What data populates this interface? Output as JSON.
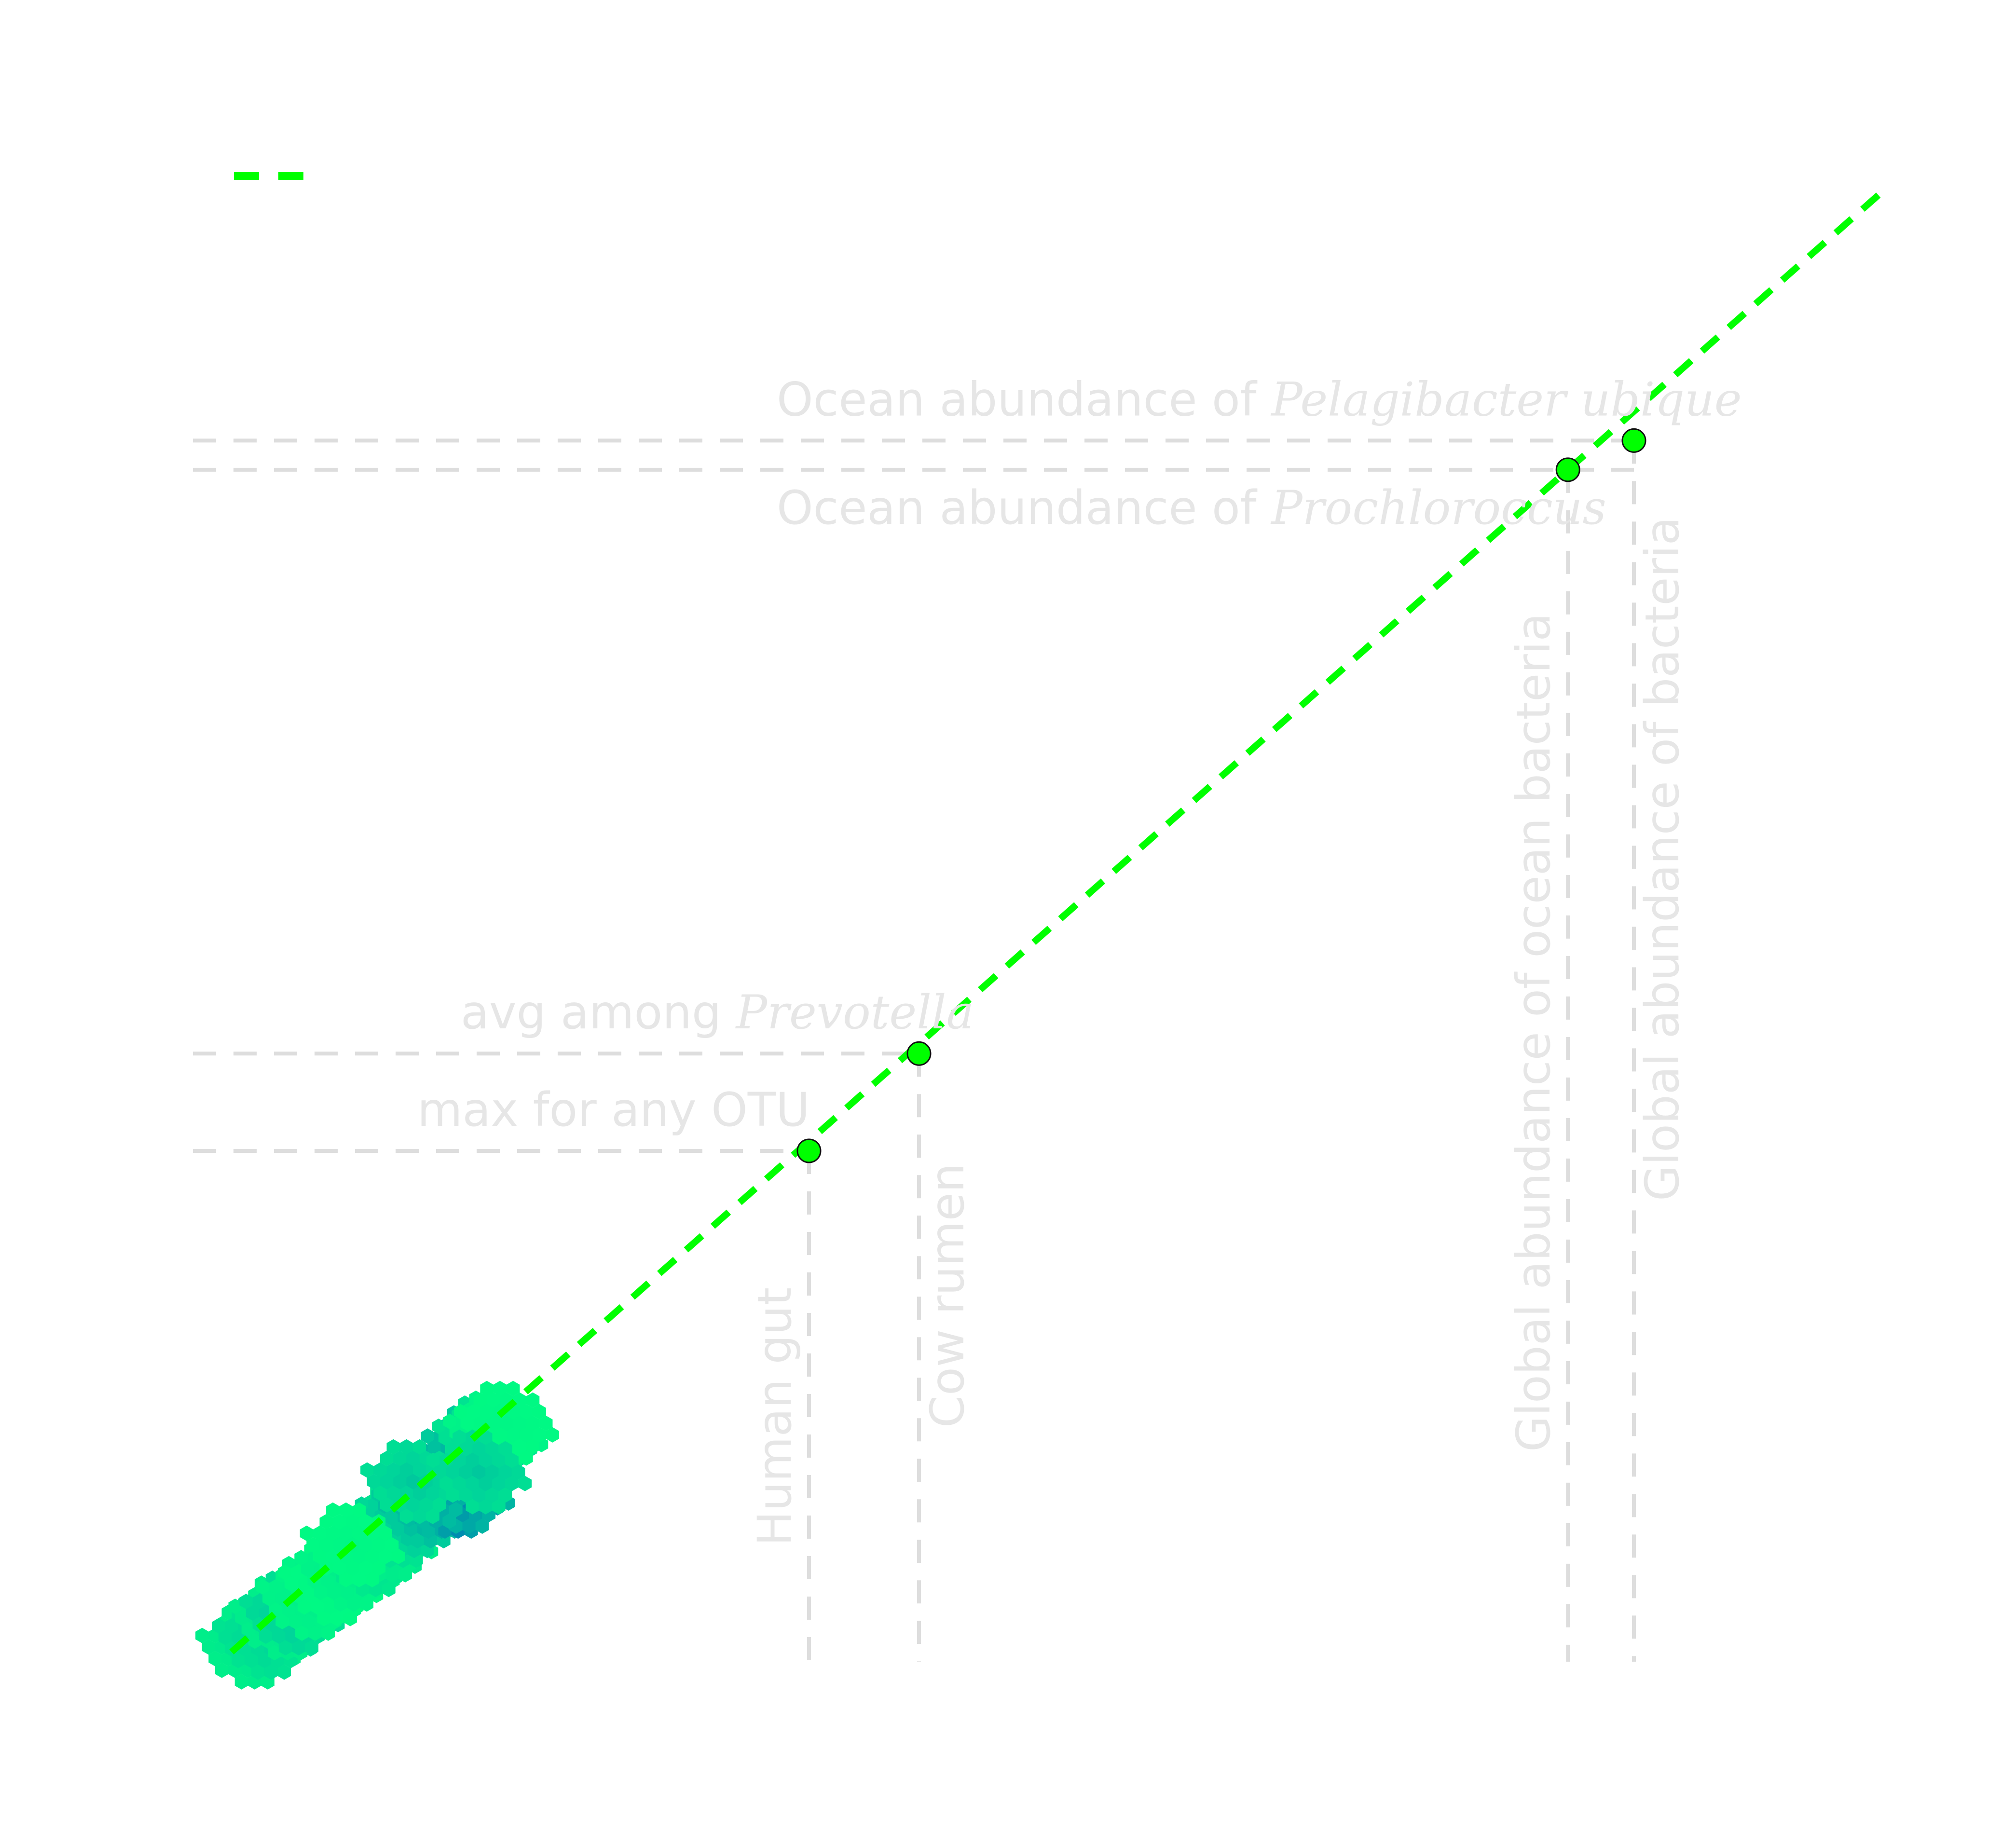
{
  "chart_data": {
    "type": "scatter",
    "title": "",
    "xlabel": "",
    "ylabel": "",
    "grid": false,
    "legend": {
      "placement": "top-left",
      "entries": [
        {
          "name": "",
          "color": "#00ff00",
          "style": "dashed-line"
        }
      ]
    },
    "xlim": [
      0,
      30
    ],
    "ylim": [
      0,
      29
    ],
    "fit_line": {
      "slope": 1.0,
      "intercept": 0.2,
      "x_range": [
        0,
        30
      ],
      "color": "#00ff00"
    },
    "hexbin_density": {
      "colormap": [
        "#00ff80",
        "#00d49a",
        "#0099aa",
        "#0055cc",
        "#0022ee"
      ],
      "cells": [
        {
          "x": 0.3,
          "y": 0.3,
          "density": 0.15
        },
        {
          "x": 0.6,
          "y": 0.5,
          "density": 0.25
        },
        {
          "x": 0.9,
          "y": 0.9,
          "density": 0.15
        },
        {
          "x": 1.1,
          "y": 1.0,
          "density": 0.3
        },
        {
          "x": 1.4,
          "y": 1.3,
          "density": 0.1
        },
        {
          "x": 1.8,
          "y": 1.6,
          "density": 0.05
        },
        {
          "x": 2.1,
          "y": 1.9,
          "density": 0.1
        },
        {
          "x": 2.5,
          "y": 2.2,
          "density": 0.2
        },
        {
          "x": 2.8,
          "y": 2.5,
          "density": 0.15
        },
        {
          "x": 3.0,
          "y": 2.8,
          "density": 0.25
        },
        {
          "x": 3.2,
          "y": 3.0,
          "density": 0.35
        },
        {
          "x": 3.5,
          "y": 3.2,
          "density": 0.45
        },
        {
          "x": 3.7,
          "y": 3.4,
          "density": 0.55
        },
        {
          "x": 3.9,
          "y": 3.6,
          "density": 0.7
        },
        {
          "x": 4.1,
          "y": 3.8,
          "density": 0.9
        },
        {
          "x": 4.0,
          "y": 3.4,
          "density": 0.75
        },
        {
          "x": 4.2,
          "y": 3.5,
          "density": 0.6
        },
        {
          "x": 4.3,
          "y": 4.1,
          "density": 0.65
        },
        {
          "x": 3.6,
          "y": 3.6,
          "density": 0.55
        },
        {
          "x": 4.4,
          "y": 4.4,
          "density": 0.45
        },
        {
          "x": 4.6,
          "y": 4.6,
          "density": 0.25
        },
        {
          "x": 4.8,
          "y": 4.7,
          "density": 0.1
        },
        {
          "x": 5.0,
          "y": 4.9,
          "density": 0.05
        },
        {
          "x": 2.2,
          "y": 2.4,
          "density": 0.05
        },
        {
          "x": 3.3,
          "y": 3.7,
          "density": 0.3
        },
        {
          "x": 4.5,
          "y": 3.9,
          "density": 0.3
        }
      ]
    },
    "points": [
      {
        "label": "Human gut",
        "x": 10.5,
        "y": 10.5,
        "color": "#00ff00"
      },
      {
        "label": "Cow rumen",
        "x": 12.5,
        "y": 12.5,
        "color": "#00ff00"
      },
      {
        "label": "Global abundance of ocean bacteria",
        "x": 24.3,
        "y": 24.5,
        "color": "#00ff00"
      },
      {
        "label": "Global abundance of bacteria",
        "x": 25.5,
        "y": 25.1,
        "color": "#00ff00"
      }
    ],
    "hlines": [
      {
        "y": 25.1,
        "label_pre": "Ocean abundance of ",
        "label_it": "Pelagibacter ubique",
        "label_pos": "above"
      },
      {
        "y": 24.5,
        "label_pre": "Ocean abundance of ",
        "label_it": "Prochloroccus",
        "label_pos": "below"
      },
      {
        "y": 12.5,
        "label_pre": "avg among ",
        "label_it": "Prevotella",
        "label_pos": "above"
      },
      {
        "y": 10.5,
        "label_pre": "max for any OTU",
        "label_it": "",
        "label_pos": "above"
      }
    ],
    "vlines": [
      {
        "x": 10.5,
        "label": "Human gut",
        "label_side": "left"
      },
      {
        "x": 12.5,
        "label": "Cow rumen",
        "label_side": "right"
      },
      {
        "x": 24.3,
        "label": "Global abundance of ocean bacteria",
        "label_side": "left"
      },
      {
        "x": 25.5,
        "label": "Global abundance of bacteria",
        "label_side": "right"
      }
    ]
  }
}
